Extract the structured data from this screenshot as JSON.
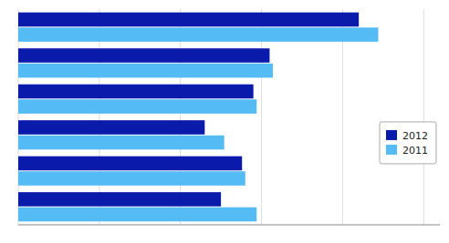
{
  "chart_data": {
    "type": "bar",
    "orientation": "horizontal",
    "categories": [
      null,
      null,
      null,
      null,
      null,
      null
    ],
    "series": [
      {
        "name": "2012",
        "color": "#0a1aaa",
        "values": [
          2.1,
          1.55,
          1.45,
          1.15,
          1.38,
          1.25
        ]
      },
      {
        "name": "2011",
        "color": "#55bbf5",
        "values": [
          2.22,
          1.57,
          1.47,
          1.27,
          1.4,
          1.47
        ]
      }
    ],
    "xlim": [
      0,
      2.6
    ],
    "xticks": [
      0,
      0.5,
      1,
      1.5,
      2,
      2.5
    ],
    "grid": true,
    "tick_labels": false,
    "legend": "right"
  }
}
